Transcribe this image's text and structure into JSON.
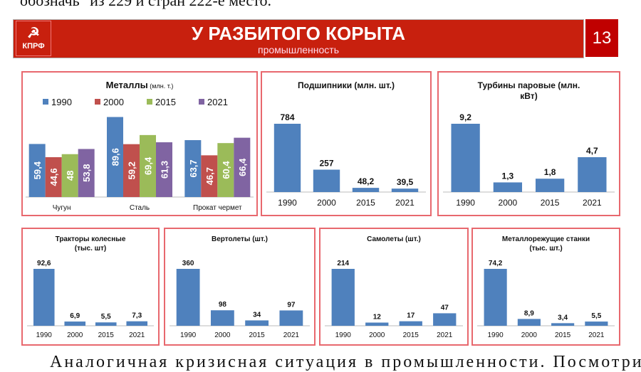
{
  "page": {
    "top_text": "обозначь\" из 229 и стран 222-е место.",
    "bottom_text": "Аналогичная кризисная ситуация в промышленности. Посмотрите"
  },
  "header": {
    "logo_text": "КПРФ",
    "title": "У РАЗБИТОГО КОРЫТА",
    "subtitle": "промышленность",
    "page_number": "13"
  },
  "colors": {
    "1990": "#4f81bd",
    "2000": "#c0504d",
    "2015": "#9bbb59",
    "2021": "#8064a2",
    "border": "#e8686e",
    "banner": "#c8200e"
  },
  "chart_data": [
    {
      "type": "bar",
      "title": "Металлы",
      "title_unit": "(млн. т.)",
      "categories": [
        "Чугун",
        "Сталь",
        "Прокат чермет"
      ],
      "legend": [
        "1990",
        "2000",
        "2015",
        "2021"
      ],
      "legend_position": "top",
      "series": [
        {
          "name": "1990",
          "values": [
            59.4,
            89.6,
            63.7
          ],
          "labels": [
            "59,4",
            "89,6",
            "63,7"
          ]
        },
        {
          "name": "2000",
          "values": [
            44.6,
            59.2,
            46.7
          ],
          "labels": [
            "44,6",
            "59,2",
            "46,7"
          ]
        },
        {
          "name": "2015",
          "values": [
            48,
            69.4,
            60.4
          ],
          "labels": [
            "48",
            "69,4",
            "60,4"
          ]
        },
        {
          "name": "2021",
          "values": [
            53.8,
            61.3,
            66.4
          ],
          "labels": [
            "53,8",
            "61,3",
            "66,4"
          ]
        }
      ],
      "ylim": [
        0,
        100
      ]
    },
    {
      "type": "bar",
      "title": "Подшипники (млн. шт.)",
      "categories": [
        "1990",
        "2000",
        "2015",
        "2021"
      ],
      "values": [
        784,
        257,
        48.2,
        39.5
      ],
      "labels": [
        "784",
        "257",
        "48,2",
        "39,5"
      ]
    },
    {
      "type": "bar",
      "title": "Турбины паровые (млн. кВт)",
      "categories": [
        "1990",
        "2000",
        "2015",
        "2021"
      ],
      "values": [
        9.2,
        1.3,
        1.8,
        4.7
      ],
      "labels": [
        "9,2",
        "1,3",
        "1,8",
        "4,7"
      ]
    },
    {
      "type": "bar",
      "title": "Тракторы колесные (тыс. шт)",
      "categories": [
        "1990",
        "2000",
        "2015",
        "2021"
      ],
      "values": [
        92.6,
        6.9,
        5.5,
        7.3
      ],
      "labels": [
        "92,6",
        "6,9",
        "5,5",
        "7,3"
      ]
    },
    {
      "type": "bar",
      "title": "Вертолеты (шт.)",
      "categories": [
        "1990",
        "2000",
        "2015",
        "2021"
      ],
      "values": [
        360,
        98,
        34,
        97
      ],
      "labels": [
        "360",
        "98",
        "34",
        "97"
      ]
    },
    {
      "type": "bar",
      "title": "Самолеты (шт.)",
      "categories": [
        "1990",
        "2000",
        "2015",
        "2021"
      ],
      "values": [
        214,
        12,
        17,
        47
      ],
      "labels": [
        "214",
        "12",
        "17",
        "47"
      ]
    },
    {
      "type": "bar",
      "title": "Металлорежущие станки (тыс. шт.)",
      "categories": [
        "1990",
        "2000",
        "2015",
        "2021"
      ],
      "values": [
        74.2,
        8.9,
        3.4,
        5.5
      ],
      "labels": [
        "74,2",
        "8,9",
        "3,4",
        "5,5"
      ]
    }
  ]
}
